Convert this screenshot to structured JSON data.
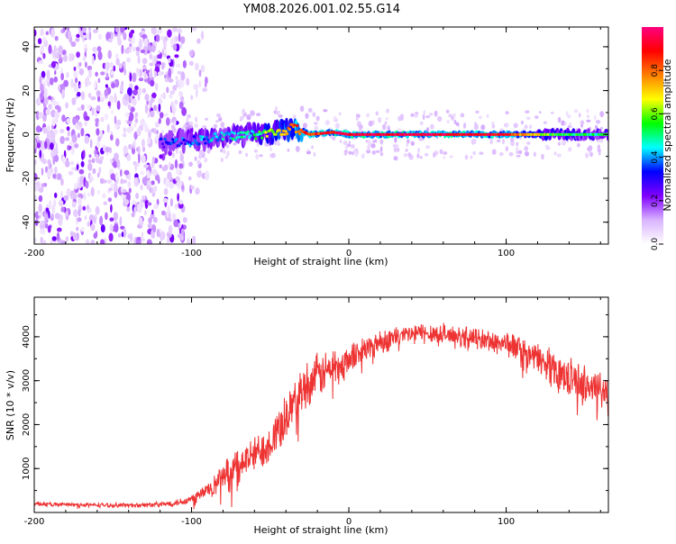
{
  "title": "YM08.2026.001.02.55.G14",
  "chart_data": [
    {
      "type": "heatmap",
      "xlabel": "Height of straight line (km)",
      "ylabel": "Frequency (Hz)",
      "xlim": [
        -200,
        165
      ],
      "ylim": [
        -50,
        49
      ],
      "xticks": [
        -200,
        -100,
        0,
        100
      ],
      "xtick_labels": [
        "-200",
        "-100",
        "0",
        "100"
      ],
      "yticks": [
        -40,
        -20,
        0,
        20,
        40
      ],
      "ytick_labels": [
        "-40",
        "-20",
        "0",
        "20",
        "40"
      ],
      "colorbar": {
        "label": "Normalized spectral amplitude",
        "range": [
          0,
          1
        ],
        "ticks": [
          0,
          0.2,
          0.4,
          0.6,
          0.8
        ],
        "tick_labels": [
          "0.0",
          "0.2",
          "0.4",
          "0.6",
          "0.8"
        ],
        "colors": [
          "#ffffff",
          "#d9b3ff",
          "#8000ff",
          "#0000ff",
          "#00ffff",
          "#00ff00",
          "#ffff00",
          "#ff8000",
          "#ff0000",
          "#ff0080"
        ]
      },
      "noise_region_x": [
        -200,
        -105
      ],
      "signal_track": {
        "x": [
          -120,
          -100,
          -80,
          -60,
          -45,
          -35,
          -25,
          -10,
          0,
          50,
          100,
          130,
          165
        ],
        "freq": [
          -4,
          -3,
          -1,
          0,
          1,
          3,
          0,
          1,
          0,
          0,
          0,
          0,
          0
        ],
        "amplitude": [
          0.3,
          0.35,
          0.45,
          0.5,
          0.7,
          0.8,
          0.85,
          0.9,
          0.95,
          0.95,
          0.9,
          0.55,
          0.5
        ]
      }
    },
    {
      "type": "line",
      "xlabel": "Height of straight line (km)",
      "ylabel": "SNR (10 * v/v)",
      "xlim": [
        -200,
        165
      ],
      "ylim": [
        0,
        4900
      ],
      "xticks": [
        -200,
        -100,
        0,
        100
      ],
      "xtick_labels": [
        "-200",
        "-100",
        "0",
        "100"
      ],
      "yticks": [
        1000,
        2000,
        3000,
        4000
      ],
      "ytick_labels": [
        "1000",
        "2000",
        "3000",
        "4000"
      ],
      "color": "#ee3333",
      "series": [
        {
          "name": "SNR",
          "x": [
            -200,
            -180,
            -160,
            -140,
            -120,
            -110,
            -100,
            -90,
            -80,
            -70,
            -60,
            -50,
            -40,
            -30,
            -20,
            -10,
            0,
            10,
            20,
            30,
            40,
            50,
            60,
            70,
            80,
            90,
            100,
            110,
            120,
            130,
            140,
            150,
            160,
            165
          ],
          "y": [
            200,
            180,
            170,
            165,
            180,
            220,
            300,
            500,
            800,
            1100,
            1300,
            1600,
            2200,
            2800,
            3100,
            3300,
            3500,
            3700,
            3900,
            4000,
            4050,
            4100,
            4050,
            4000,
            3950,
            3900,
            3850,
            3700,
            3500,
            3300,
            3100,
            2900,
            2800,
            2700
          ],
          "noise": [
            60,
            60,
            60,
            60,
            70,
            90,
            150,
            250,
            400,
            450,
            500,
            550,
            650,
            650,
            600,
            550,
            450,
            400,
            350,
            300,
            300,
            300,
            300,
            300,
            300,
            320,
            350,
            380,
            420,
            450,
            500,
            550,
            600,
            600
          ]
        }
      ]
    }
  ]
}
